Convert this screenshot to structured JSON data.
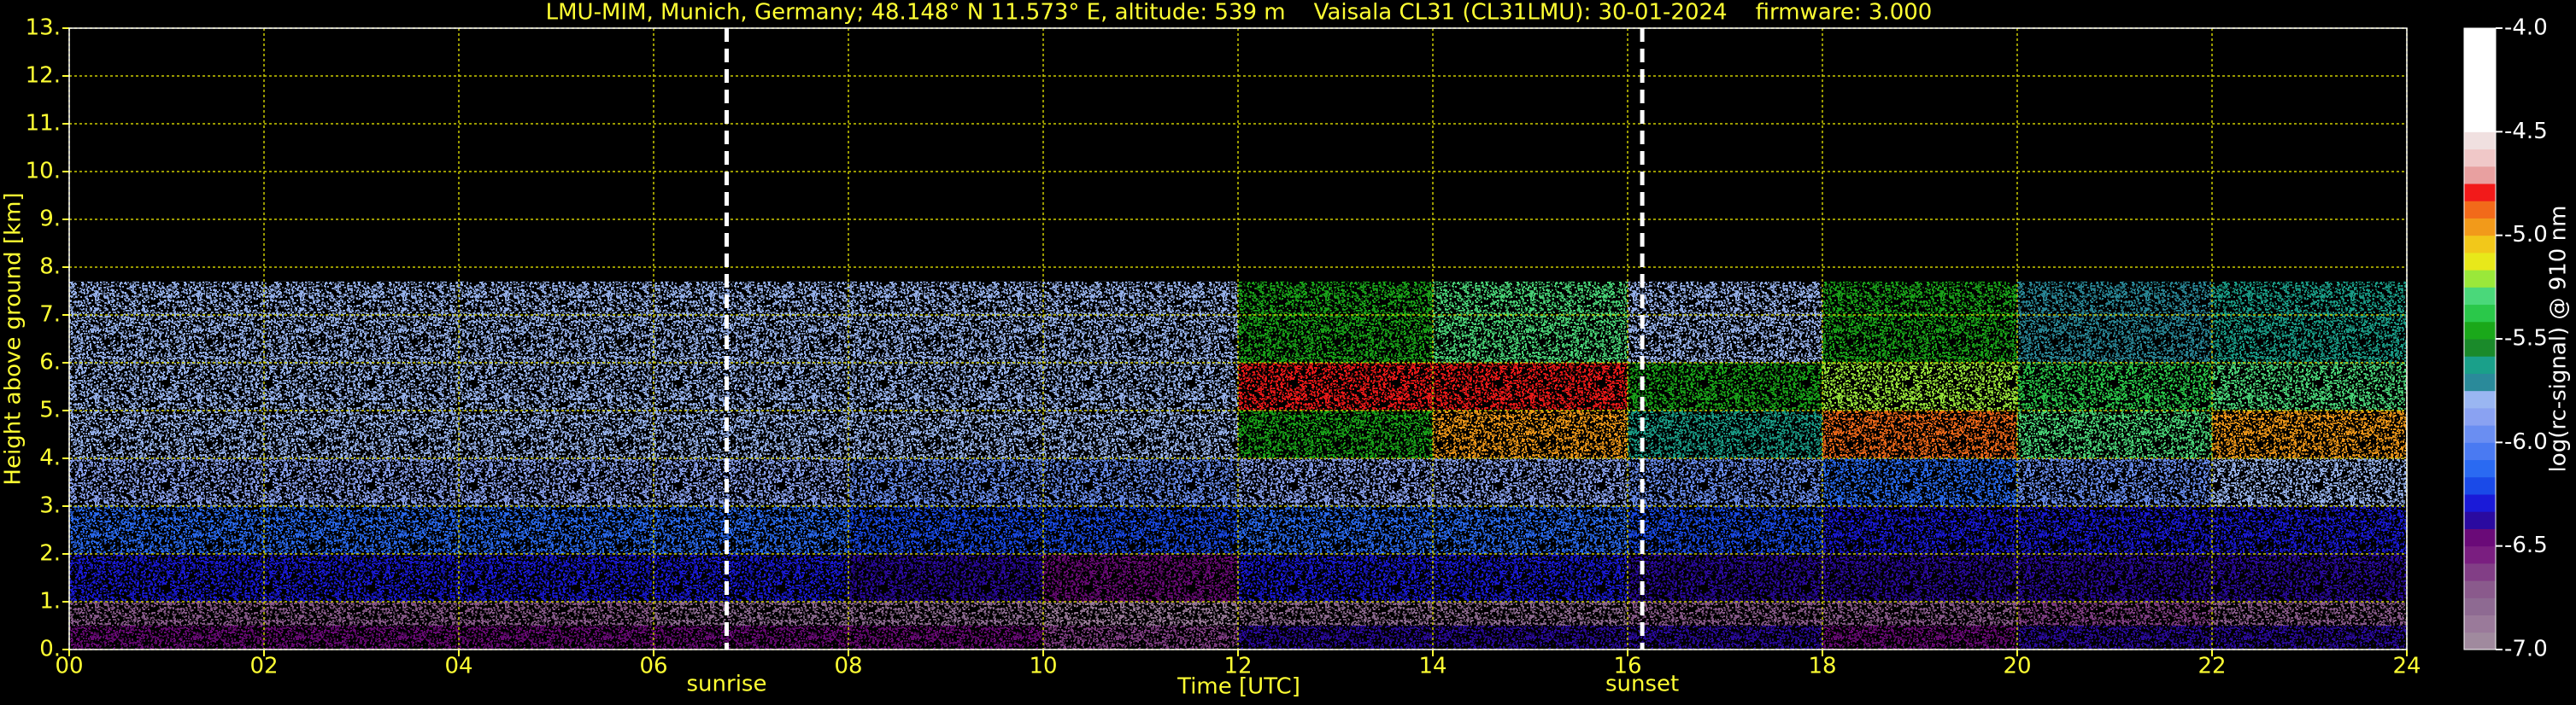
{
  "chart_data": {
    "type": "heatmap",
    "title": "LMU-MIM, Munich, Germany; 48.148° N 11.573° E, altitude: 539 m    Vaisala CL31 (CL31LMU): 30-01-2024    firmware: 3.000",
    "xlabel": "Time [UTC]",
    "ylabel": "Height above ground [km]",
    "xlim": [
      0,
      24
    ],
    "xticks": [
      {
        "value": 0,
        "label": "00"
      },
      {
        "value": 2,
        "label": "02"
      },
      {
        "value": 4,
        "label": "04"
      },
      {
        "value": 6,
        "label": "06"
      },
      {
        "value": 8,
        "label": "08"
      },
      {
        "value": 10,
        "label": "10"
      },
      {
        "value": 12,
        "label": "12"
      },
      {
        "value": 14,
        "label": "14"
      },
      {
        "value": 16,
        "label": "16"
      },
      {
        "value": 18,
        "label": "18"
      },
      {
        "value": 20,
        "label": "20"
      },
      {
        "value": 22,
        "label": "22"
      },
      {
        "value": 24,
        "label": "24"
      }
    ],
    "ylim": [
      0,
      13
    ],
    "yticks": [
      {
        "value": 0,
        "label": "0."
      },
      {
        "value": 1,
        "label": "1."
      },
      {
        "value": 2,
        "label": "2."
      },
      {
        "value": 3,
        "label": "3."
      },
      {
        "value": 4,
        "label": "4."
      },
      {
        "value": 5,
        "label": "5."
      },
      {
        "value": 6,
        "label": "6."
      },
      {
        "value": 7,
        "label": "7."
      },
      {
        "value": 8,
        "label": "8."
      },
      {
        "value": 9,
        "label": "9."
      },
      {
        "value": 10,
        "label": "10."
      },
      {
        "value": 11,
        "label": "11."
      },
      {
        "value": 12,
        "label": "12."
      },
      {
        "value": 13,
        "label": "13."
      }
    ],
    "grid": true,
    "markers": [
      {
        "label": "sunrise",
        "x": 6.75
      },
      {
        "label": "sunset",
        "x": 16.15
      }
    ],
    "xbins": [
      0,
      2,
      4,
      6,
      8,
      10,
      12,
      14,
      16,
      18,
      20,
      22,
      24
    ],
    "ybins": [
      0,
      0.5,
      1,
      2,
      3,
      4,
      5,
      6,
      7.7
    ],
    "z": [
      [
        -6.5,
        -6.5,
        -6.5,
        -6.5,
        -6.5,
        -6.6,
        -6.4,
        -6.4,
        -6.4,
        -6.5,
        -6.4,
        -6.4
      ],
      [
        -6.7,
        -6.7,
        -6.7,
        -6.8,
        -6.8,
        -6.9,
        -6.8,
        -6.8,
        -6.7,
        -6.7,
        -6.6,
        -6.7
      ],
      [
        -6.3,
        -6.3,
        -6.3,
        -6.3,
        -6.4,
        -6.5,
        -6.3,
        -6.3,
        -6.4,
        -6.4,
        -6.4,
        -6.4
      ],
      [
        -6.1,
        -6.1,
        -6.1,
        -6.1,
        -6.2,
        -6.2,
        -6.1,
        -6.1,
        -6.2,
        -6.3,
        -6.3,
        -6.3
      ],
      [
        -5.9,
        -5.9,
        -5.9,
        -5.9,
        -6.0,
        -6.0,
        -5.9,
        -5.9,
        -6.0,
        -6.1,
        -6.0,
        -5.8
      ],
      [
        -5.8,
        -5.8,
        -5.8,
        -5.8,
        -5.8,
        -5.8,
        -5.5,
        -5.0,
        -5.6,
        -4.9,
        -5.3,
        -5.0
      ],
      [
        -5.8,
        -5.8,
        -5.8,
        -5.8,
        -5.8,
        -5.8,
        -4.8,
        -4.8,
        -5.5,
        -5.2,
        -5.4,
        -5.3
      ],
      [
        -5.8,
        -5.8,
        -5.8,
        -5.8,
        -5.8,
        -5.8,
        -5.5,
        -5.3,
        -5.8,
        -5.5,
        -5.7,
        -5.6
      ]
    ],
    "colorbar": {
      "label": "log(rc-signal) @ 910 nm",
      "lim": [
        -7,
        -4
      ],
      "ticks": [
        {
          "value": -4,
          "label": "-4.0"
        },
        {
          "value": -4.5,
          "label": "-4.5"
        },
        {
          "value": -5,
          "label": "-5.0"
        },
        {
          "value": -5.5,
          "label": "-5.5"
        },
        {
          "value": -6,
          "label": "-6.0"
        },
        {
          "value": -6.5,
          "label": "-6.5"
        },
        {
          "value": -7,
          "label": "-7.0"
        }
      ],
      "colors": [
        "#a08a9e",
        "#9a7a9a",
        "#8e6a92",
        "#8a5a8c",
        "#823e86",
        "#7a1e80",
        "#6a0a78",
        "#2a0aa0",
        "#1a1ad8",
        "#1a4ae8",
        "#2a6af2",
        "#4a7af2",
        "#6a8ef2",
        "#8aa2f2",
        "#9ab6f2",
        "#2a8a9a",
        "#1aa08a",
        "#1a8a2a",
        "#1aa81a",
        "#2ac84a",
        "#4ad87a",
        "#9ae83a",
        "#e8e81a",
        "#f2c81a",
        "#f29a1a",
        "#f26a1a",
        "#f21a1a",
        "#e8a0a0",
        "#f0c8c8",
        "#f0e0e0",
        "#ffffff",
        "#ffffff",
        "#ffffff",
        "#ffffff",
        "#ffffff",
        "#ffffff"
      ]
    }
  }
}
